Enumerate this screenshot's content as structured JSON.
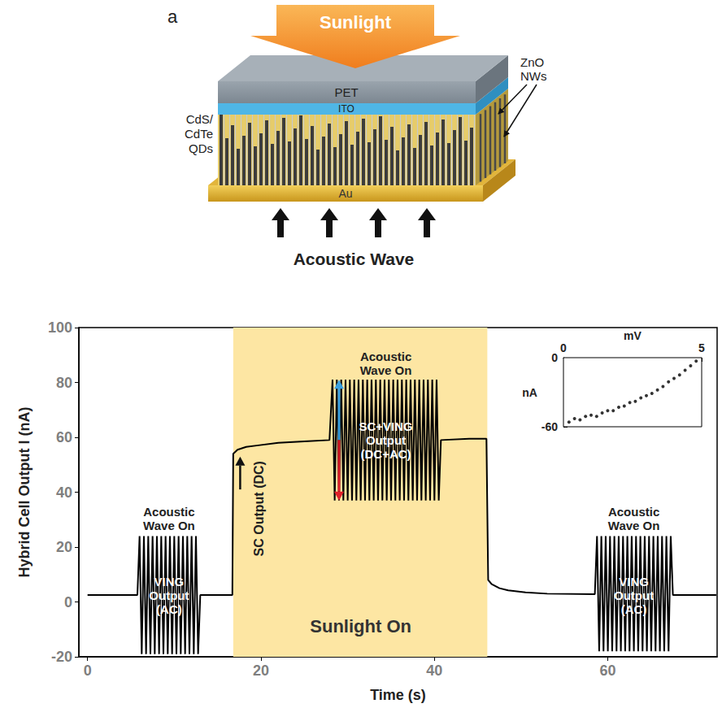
{
  "panel_a": {
    "label": "a",
    "sunlight": "Sunlight",
    "layers": {
      "pet": "PET",
      "ito": "ITO",
      "nanowires": [
        "ZnO",
        "NWs"
      ],
      "quantum_dots": [
        "CdS/",
        "CdTe",
        "QDs"
      ],
      "electrode": "Au"
    },
    "excitation": "Acoustic Wave"
  },
  "chart_data": {
    "type": "line",
    "panel": "b",
    "x_label": "Time (s)",
    "y_label": "Hybrid Cell Output I (nA)",
    "xlim": [
      -1,
      72.6
    ],
    "xticks": [
      0,
      20,
      40,
      60
    ],
    "ylim": [
      -20,
      100
    ],
    "yticks": [
      -20,
      0,
      20,
      40,
      60,
      80,
      100
    ],
    "grid": false,
    "color": "#000000",
    "x": [
      0,
      3,
      5.75,
      6,
      6.25,
      6.5,
      6.75,
      7,
      7.25,
      7.5,
      7.75,
      8,
      8.25,
      8.5,
      8.75,
      9,
      9.25,
      9.5,
      9.75,
      10,
      10.25,
      10.5,
      10.75,
      11,
      11.25,
      11.5,
      11.75,
      12,
      12.25,
      12.5,
      12.75,
      13,
      16.7,
      16.8,
      17.3,
      18.3,
      19.5,
      22,
      25,
      27.9,
      28.25,
      28.5,
      28.75,
      29,
      29.25,
      29.5,
      29.75,
      30,
      30.25,
      30.5,
      30.75,
      31,
      31.25,
      31.5,
      31.75,
      32,
      32.25,
      32.5,
      32.75,
      33,
      33.25,
      33.5,
      33.75,
      34,
      34.25,
      34.5,
      34.75,
      35,
      35.25,
      35.5,
      35.75,
      36,
      36.25,
      36.5,
      36.75,
      37,
      37.25,
      37.5,
      37.75,
      38,
      38.25,
      38.5,
      38.75,
      39,
      39.25,
      39.5,
      39.75,
      40,
      40.25,
      40.5,
      40.75,
      44,
      46,
      46.2,
      46.6,
      47.5,
      48.5,
      50.5,
      53,
      58.5,
      58.75,
      59,
      59.25,
      59.5,
      59.75,
      60,
      60.25,
      60.5,
      60.75,
      61,
      61.25,
      61.5,
      61.75,
      62,
      62.25,
      62.5,
      62.75,
      63,
      63.25,
      63.5,
      63.75,
      64,
      64.25,
      64.5,
      64.75,
      65,
      65.25,
      65.5,
      65.75,
      66,
      66.25,
      66.5,
      66.75,
      67,
      67.25,
      67.5,
      72.5
    ],
    "values": [
      2.5,
      2.5,
      2.5,
      24,
      -19,
      24,
      -19,
      24,
      -19,
      24,
      -19,
      24,
      -19,
      24,
      -19,
      24,
      -19,
      24,
      -19,
      24,
      -19,
      24,
      -19,
      24,
      -19,
      24,
      -19,
      24,
      -19,
      24,
      -19,
      2.5,
      2.5,
      54,
      55.5,
      56.5,
      57,
      58,
      58.5,
      59,
      81,
      37,
      81,
      37,
      81,
      37,
      81,
      37,
      81,
      37,
      81,
      37,
      81,
      37,
      81,
      37,
      81,
      37,
      81,
      37,
      81,
      37,
      81,
      37,
      81,
      37,
      81,
      37,
      81,
      37,
      81,
      37,
      81,
      37,
      81,
      37,
      81,
      37,
      81,
      37,
      81,
      37,
      81,
      37,
      81,
      37,
      81,
      37,
      81,
      37,
      59,
      59.5,
      59.5,
      8,
      6.5,
      5,
      4.2,
      3.5,
      3,
      2.8,
      24,
      -18,
      24,
      -18,
      24,
      -18,
      24,
      -18,
      24,
      -18,
      24,
      -18,
      24,
      -18,
      24,
      -18,
      24,
      -18,
      24,
      -18,
      24,
      -18,
      24,
      -18,
      24,
      -18,
      24,
      -18,
      24,
      -18,
      24,
      -18,
      24,
      -18,
      24,
      2.5,
      2.5
    ],
    "highlight": {
      "label": "Sunlight On",
      "x": [
        16.8,
        46.1
      ],
      "color": "#fde6a3"
    },
    "annotations": {
      "acoustic_on": [
        "Acoustic Wave On",
        "Acoustic Wave On",
        "Acoustic Wave On"
      ],
      "ving": [
        "VING Output (AC)",
        "VING Output (AC)"
      ],
      "hybrid": "SC+VING Output (DC+AC)",
      "dc": "SC Output (DC)"
    },
    "inset": {
      "type": "scatter",
      "x_label": "mV",
      "y_label": "nA",
      "xlim": [
        0,
        5
      ],
      "xticks": [
        0,
        5
      ],
      "ylim": [
        -60,
        0
      ],
      "yticks": [
        -60,
        0
      ],
      "marker": "circle",
      "color": "#000000",
      "x": [
        0.2,
        0.4,
        0.6,
        0.8,
        1,
        1.2,
        1.4,
        1.6,
        1.8,
        2,
        2.2,
        2.4,
        2.6,
        2.8,
        3,
        3.2,
        3.4,
        3.6,
        3.8,
        4,
        4.2,
        4.4,
        4.6,
        4.8
      ],
      "values": [
        -56,
        -53,
        -54,
        -51,
        -50,
        -51,
        -48,
        -46,
        -46,
        -43,
        -42,
        -39,
        -38,
        -35,
        -33,
        -31,
        -28,
        -25,
        -21,
        -18,
        -15,
        -11,
        -7,
        -3
      ]
    }
  }
}
